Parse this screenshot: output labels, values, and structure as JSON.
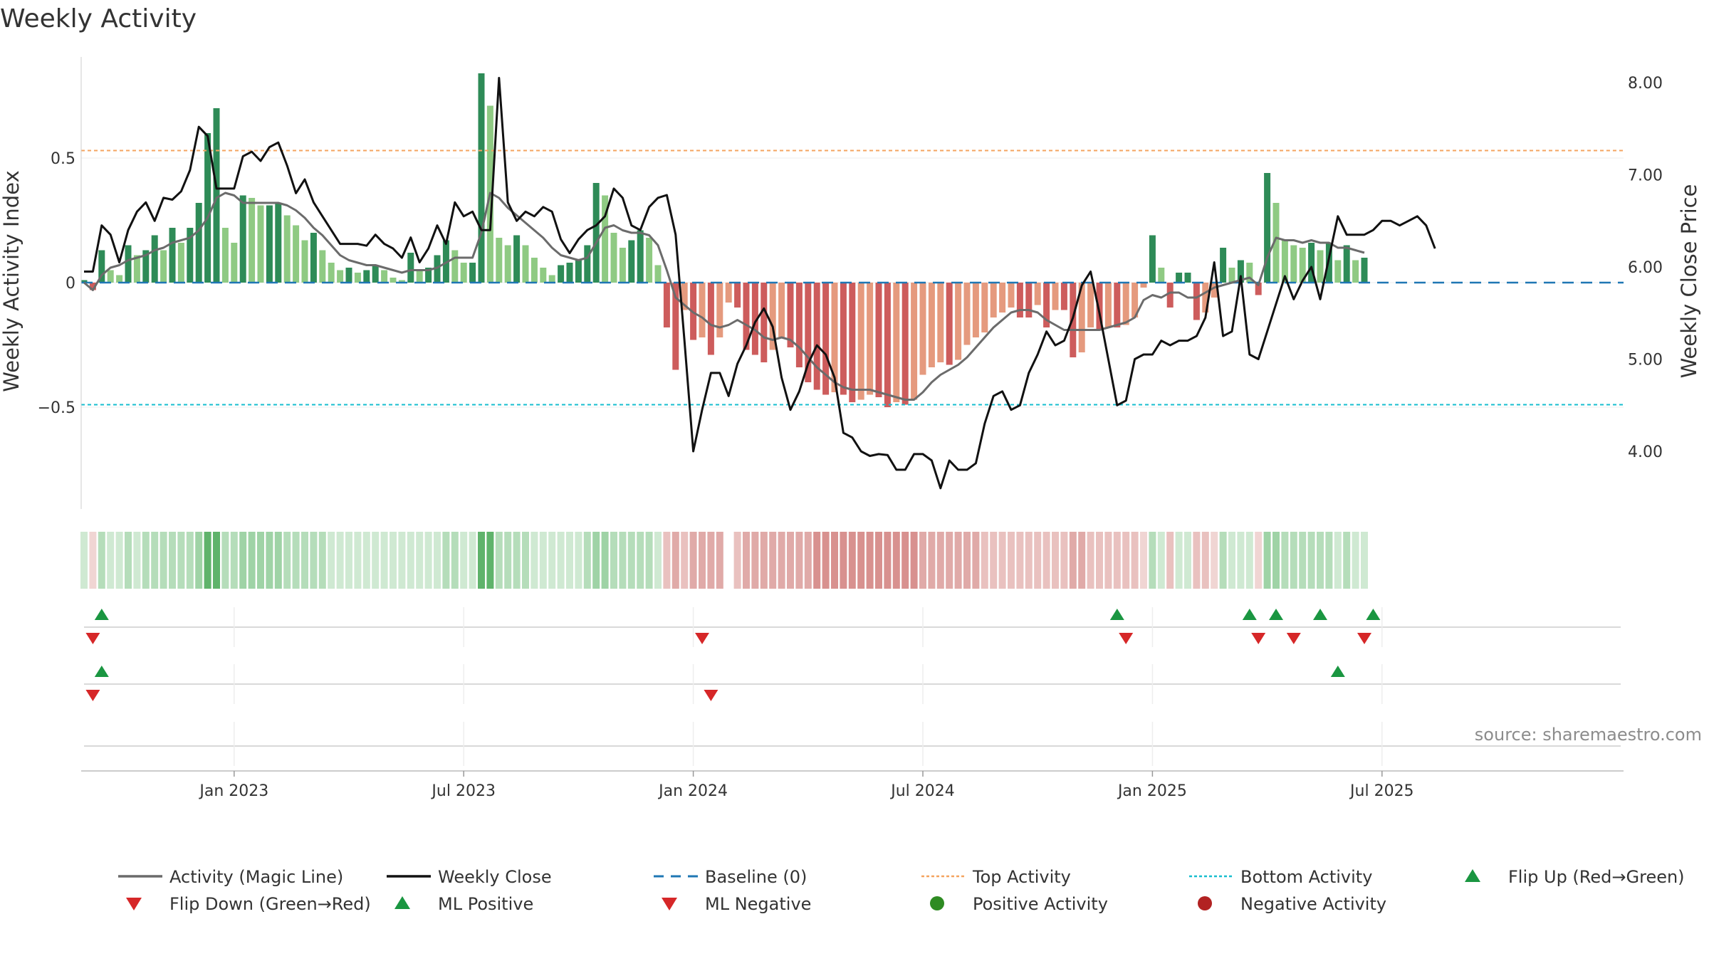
{
  "chart_data": {
    "type": "bar",
    "title": "Weekly Activity",
    "ylabel": "Weekly Activity Index",
    "ylabel_right": "Weekly Close Price",
    "ylim": [
      -0.9,
      0.9
    ],
    "ylim_right": [
      3.4,
      8.3
    ],
    "y_ticks": [
      0.5,
      0,
      -0.5
    ],
    "y_tick_labels": [
      "0.5",
      "0",
      "−0.5"
    ],
    "y_right_ticks": [
      8.0,
      7.0,
      6.0,
      5.0,
      4.0
    ],
    "y_right_tick_labels": [
      "8.00",
      "7.00",
      "6.00",
      "5.00",
      "4.00"
    ],
    "x_tick_labels": [
      "Jan 2023",
      "Jul 2023",
      "Jan 2024",
      "Jul 2024",
      "Jan 2025",
      "Jul 2025"
    ],
    "x_tick_weeks": [
      17,
      43,
      69,
      95,
      121,
      147
    ],
    "weeks": 157,
    "top_activity": 0.53,
    "bottom_activity": -0.49,
    "baseline": 0,
    "activity": [
      0.01,
      -0.03,
      0.13,
      0.05,
      0.03,
      0.15,
      0.11,
      0.13,
      0.19,
      0.13,
      0.22,
      0.16,
      0.22,
      0.32,
      0.6,
      0.7,
      0.22,
      0.16,
      0.35,
      0.34,
      0.31,
      0.31,
      0.32,
      0.27,
      0.23,
      0.17,
      0.2,
      0.13,
      0.08,
      0.05,
      0.06,
      0.04,
      0.05,
      0.07,
      0.05,
      0.02,
      0.01,
      0.12,
      0.05,
      0.06,
      0.11,
      0.17,
      0.13,
      0.08,
      0.08,
      0.84,
      0.71,
      0.18,
      0.15,
      0.19,
      0.15,
      0.1,
      0.06,
      0.03,
      0.07,
      0.08,
      0.09,
      0.15,
      0.4,
      0.35,
      0.2,
      0.14,
      0.17,
      0.21,
      0.18,
      0.07,
      -0.18,
      -0.35,
      -0.11,
      -0.23,
      -0.22,
      -0.29,
      -0.22,
      -0.08,
      -0.1,
      -0.27,
      -0.29,
      -0.32,
      -0.27,
      -0.22,
      -0.26,
      -0.34,
      -0.4,
      -0.43,
      -0.45,
      -0.44,
      -0.45,
      -0.48,
      -0.47,
      -0.45,
      -0.46,
      -0.5,
      -0.48,
      -0.49,
      -0.47,
      -0.37,
      -0.34,
      -0.32,
      -0.33,
      -0.31,
      -0.25,
      -0.22,
      -0.2,
      -0.14,
      -0.12,
      -0.1,
      -0.14,
      -0.14,
      -0.09,
      -0.18,
      -0.11,
      -0.11,
      -0.3,
      -0.28,
      -0.18,
      -0.19,
      -0.18,
      -0.18,
      -0.17,
      -0.14,
      -0.02,
      0.19,
      0.06,
      -0.1,
      0.04,
      0.04,
      -0.15,
      -0.12,
      -0.06,
      0.14,
      0.06,
      0.09,
      0.08,
      -0.05,
      0.44,
      0.32,
      0.17,
      0.15,
      0.14,
      0.16,
      0.13,
      0.16,
      0.09,
      0.15,
      0.09,
      0.1
    ],
    "magic_line": [
      0.0,
      -0.03,
      0.03,
      0.06,
      0.07,
      0.09,
      0.1,
      0.11,
      0.13,
      0.14,
      0.16,
      0.17,
      0.18,
      0.21,
      0.26,
      0.34,
      0.36,
      0.35,
      0.32,
      0.32,
      0.32,
      0.32,
      0.32,
      0.31,
      0.29,
      0.26,
      0.22,
      0.19,
      0.15,
      0.11,
      0.09,
      0.08,
      0.07,
      0.07,
      0.06,
      0.05,
      0.04,
      0.05,
      0.05,
      0.05,
      0.06,
      0.08,
      0.1,
      0.1,
      0.1,
      0.2,
      0.36,
      0.34,
      0.3,
      0.27,
      0.24,
      0.21,
      0.18,
      0.14,
      0.11,
      0.1,
      0.09,
      0.1,
      0.16,
      0.22,
      0.23,
      0.21,
      0.2,
      0.2,
      0.19,
      0.15,
      0.05,
      -0.06,
      -0.09,
      -0.12,
      -0.14,
      -0.17,
      -0.18,
      -0.17,
      -0.15,
      -0.17,
      -0.19,
      -0.22,
      -0.23,
      -0.22,
      -0.23,
      -0.26,
      -0.3,
      -0.34,
      -0.37,
      -0.4,
      -0.42,
      -0.43,
      -0.43,
      -0.43,
      -0.44,
      -0.45,
      -0.46,
      -0.47,
      -0.47,
      -0.44,
      -0.4,
      -0.37,
      -0.35,
      -0.33,
      -0.3,
      -0.26,
      -0.22,
      -0.18,
      -0.15,
      -0.12,
      -0.11,
      -0.11,
      -0.12,
      -0.15,
      -0.17,
      -0.19,
      -0.19,
      -0.19,
      -0.19,
      -0.19,
      -0.18,
      -0.17,
      -0.16,
      -0.14,
      -0.07,
      -0.05,
      -0.06,
      -0.04,
      -0.04,
      -0.06,
      -0.06,
      -0.04,
      -0.02,
      -0.01,
      0.0,
      0.01,
      0.02,
      -0.01,
      0.1,
      0.18,
      0.17,
      0.17,
      0.16,
      0.17,
      0.16,
      0.16,
      0.14,
      0.14,
      0.13,
      0.12
    ],
    "weekly_close": [
      5.95,
      5.95,
      6.45,
      6.35,
      6.05,
      6.4,
      6.6,
      6.7,
      6.5,
      6.75,
      6.73,
      6.82,
      7.05,
      7.52,
      7.42,
      6.85,
      6.85,
      6.85,
      7.2,
      7.25,
      7.15,
      7.3,
      7.35,
      7.1,
      6.8,
      6.95,
      6.7,
      6.55,
      6.4,
      6.25,
      6.25,
      6.25,
      6.23,
      6.35,
      6.25,
      6.2,
      6.1,
      6.32,
      6.05,
      6.2,
      6.45,
      6.25,
      6.7,
      6.55,
      6.6,
      6.4,
      6.4,
      8.05,
      6.7,
      6.5,
      6.6,
      6.55,
      6.65,
      6.6,
      6.3,
      6.15,
      6.3,
      6.4,
      6.45,
      6.55,
      6.85,
      6.75,
      6.45,
      6.4,
      6.65,
      6.75,
      6.78,
      6.35,
      5.2,
      4.0,
      4.45,
      4.85,
      4.85,
      4.6,
      4.95,
      5.15,
      5.4,
      5.55,
      5.35,
      4.8,
      4.45,
      4.65,
      4.95,
      5.15,
      5.05,
      4.8,
      4.2,
      4.15,
      4.0,
      3.95,
      3.97,
      3.96,
      3.8,
      3.8,
      3.97,
      3.97,
      3.9,
      3.6,
      3.9,
      3.8,
      3.8,
      3.87,
      4.3,
      4.6,
      4.65,
      4.45,
      4.5,
      4.85,
      5.05,
      5.3,
      5.15,
      5.2,
      5.45,
      5.8,
      5.95,
      5.5,
      5.0,
      4.5,
      4.55,
      5.0,
      5.05,
      5.05,
      5.2,
      5.15,
      5.2,
      5.2,
      5.25,
      5.45,
      6.05,
      5.25,
      5.3,
      5.9,
      5.05,
      5.0,
      5.3,
      5.6,
      5.9,
      5.65,
      5.85,
      6.0,
      5.65,
      6.1,
      6.55,
      6.35,
      6.35,
      6.35,
      6.4,
      6.5,
      6.5,
      6.45,
      6.5,
      6.55,
      6.45,
      6.2
    ]
  },
  "strips": {
    "row1_up": [
      2,
      117,
      132,
      135,
      140,
      146
    ],
    "row1_down": [
      1,
      70,
      118,
      133,
      137,
      145
    ],
    "row2_up": [
      2,
      142
    ],
    "row2_down": [
      1,
      71
    ]
  },
  "legend": [
    {
      "key": "magic_line",
      "label": "Activity (Magic Line)",
      "color": "#6b6b6b",
      "symbol": "line"
    },
    {
      "key": "weekly_close",
      "label": "Weekly Close",
      "color": "#111111",
      "symbol": "line"
    },
    {
      "key": "baseline",
      "label": "Baseline (0)",
      "color": "#1f77b4",
      "symbol": "dash"
    },
    {
      "key": "top_activity",
      "label": "Top Activity",
      "color": "#f4a460",
      "symbol": "dot"
    },
    {
      "key": "bottom_activity",
      "label": "Bottom Activity",
      "color": "#17becf",
      "symbol": "dot"
    },
    {
      "key": "flip_up",
      "label": "Flip Up (Red→Green)",
      "color": "#1a9641",
      "symbol": "triangle-up"
    },
    {
      "key": "flip_down",
      "label": "Flip Down (Green→Red)",
      "color": "#d62728",
      "symbol": "triangle-down"
    },
    {
      "key": "ml_positive",
      "label": "ML Positive",
      "color": "#1a9641",
      "symbol": "triangle-up"
    },
    {
      "key": "ml_negative",
      "label": "ML Negative",
      "color": "#d62728",
      "symbol": "triangle-down"
    },
    {
      "key": "positive_activity",
      "label": "Positive Activity",
      "color": "#2e8b22",
      "symbol": "circle"
    },
    {
      "key": "negative_activity",
      "label": "Negative Activity",
      "color": "#b22222",
      "symbol": "circle"
    }
  ],
  "source": "source: sharemaestro.com"
}
